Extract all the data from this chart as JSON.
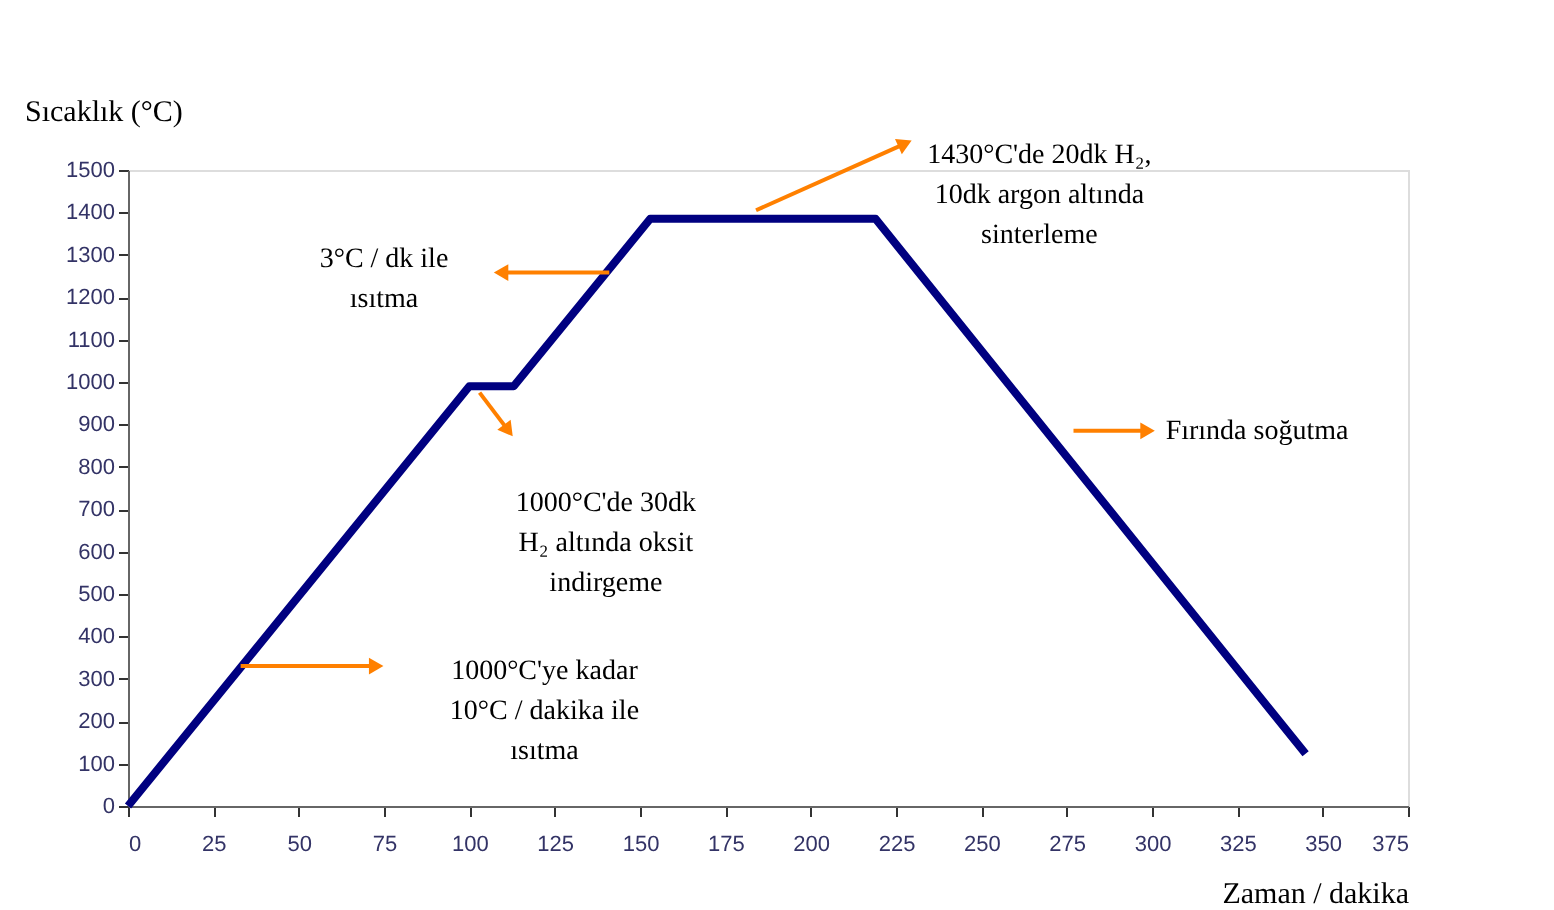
{
  "chart_data": {
    "type": "line",
    "xlabel": "Zaman / dakika",
    "ylabel": "Sıcaklık (°C)",
    "x": [
      0,
      100,
      113,
      153,
      219,
      345
    ],
    "series": [
      {
        "color": "#000080",
        "values": [
          0,
          990,
          990,
          1385,
          1385,
          123
        ]
      }
    ],
    "xlim": [
      0,
      375
    ],
    "xticks": [
      0,
      25,
      50,
      75,
      100,
      125,
      150,
      175,
      200,
      225,
      250,
      275,
      300,
      325,
      350,
      375
    ],
    "ylim": [
      0,
      1500
    ],
    "yticks": [
      0,
      100,
      200,
      300,
      400,
      500,
      600,
      700,
      800,
      900,
      1000,
      1100,
      1200,
      1300,
      1400,
      1500
    ],
    "grid": false,
    "annotations": [
      "1000°C'ye kadar\n10°C / dakika ile\nısıtma",
      "1000°C'de 30dk\nH₂ altında oksit\nindirgeme",
      "3°C / dk ile\nısıtma",
      "1430°C'de 20dk H₂,\n10dk argon altında\nsinterleme",
      "Fırında soğutma"
    ]
  }
}
